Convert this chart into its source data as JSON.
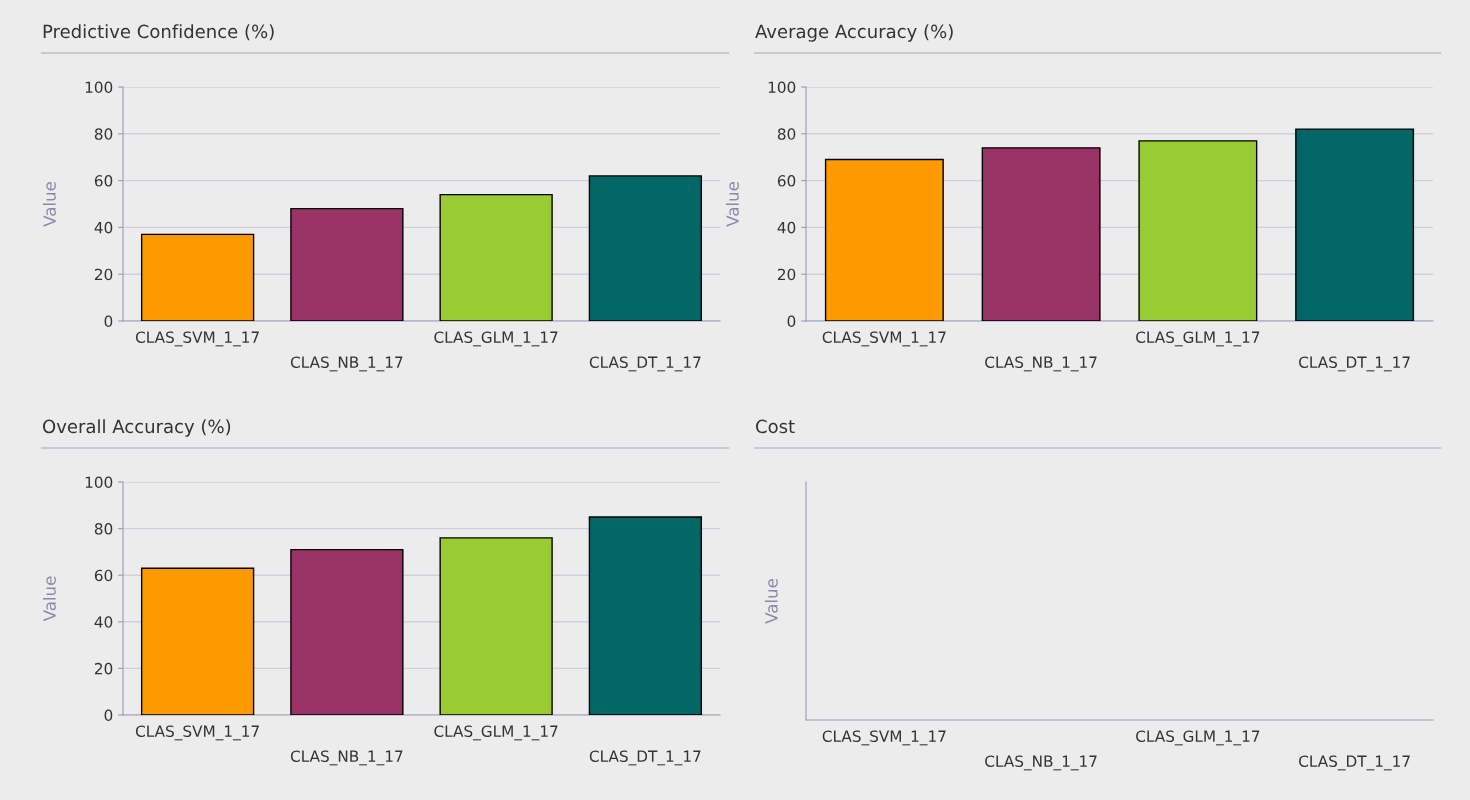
{
  "chart_data": [
    {
      "type": "bar",
      "title": "Predictive Confidence (%)",
      "ylabel": "Value",
      "categories": [
        "CLAS_SVM_1_17",
        "CLAS_NB_1_17",
        "CLAS_GLM_1_17",
        "CLAS_DT_1_17"
      ],
      "colors": [
        "#ff9900",
        "#993366",
        "#99cc33",
        "#006666"
      ],
      "values": [
        37,
        48,
        54,
        62
      ],
      "ylim": [
        0,
        100
      ],
      "yticks": [
        0,
        20,
        40,
        60,
        80,
        100
      ],
      "grid": "y"
    },
    {
      "type": "bar",
      "title": "Average Accuracy (%)",
      "ylabel": "Value",
      "categories": [
        "CLAS_SVM_1_17",
        "CLAS_NB_1_17",
        "CLAS_GLM_1_17",
        "CLAS_DT_1_17"
      ],
      "colors": [
        "#ff9900",
        "#993366",
        "#99cc33",
        "#006666"
      ],
      "values": [
        69,
        74,
        77,
        82
      ],
      "ylim": [
        0,
        100
      ],
      "yticks": [
        0,
        20,
        40,
        60,
        80,
        100
      ],
      "grid": "y"
    },
    {
      "type": "bar",
      "title": "Overall Accuracy (%)",
      "ylabel": "Value",
      "categories": [
        "CLAS_SVM_1_17",
        "CLAS_NB_1_17",
        "CLAS_GLM_1_17",
        "CLAS_DT_1_17"
      ],
      "colors": [
        "#ff9900",
        "#993366",
        "#99cc33",
        "#006666"
      ],
      "values": [
        63,
        71,
        76,
        85
      ],
      "ylim": [
        0,
        100
      ],
      "yticks": [
        0,
        20,
        40,
        60,
        80,
        100
      ],
      "grid": "y"
    },
    {
      "type": "other",
      "title": "Cost",
      "ylabel": "Value",
      "categories": [
        "CLAS_SVM_1_17",
        "CLAS_NB_1_17",
        "CLAS_GLM_1_17",
        "CLAS_DT_1_17"
      ]
    }
  ]
}
